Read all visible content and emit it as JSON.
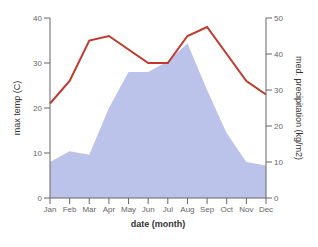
{
  "chart_data": {
    "type": "line",
    "categories": [
      "Jan",
      "Feb",
      "Mar",
      "Apr",
      "May",
      "Jun",
      "Jul",
      "Aug",
      "Sep",
      "Oct",
      "Nov",
      "Dec"
    ],
    "xlabel": "date (month)",
    "ylabel": "max temp (C)",
    "y2label": "med. precipitation (kg/m2)",
    "ylim": [
      0,
      40
    ],
    "yticks": [
      0,
      10,
      20,
      30,
      40
    ],
    "y2lim": [
      0,
      50
    ],
    "y2ticks": [
      0,
      10,
      20,
      30,
      40,
      50
    ],
    "series": [
      {
        "type": "area",
        "axis": "y2",
        "color": "#b0b8e8",
        "values": [
          10,
          13,
          12,
          25,
          35,
          35,
          38,
          43,
          30,
          18,
          10,
          9
        ]
      },
      {
        "type": "line",
        "color": "#c0392b",
        "values": [
          21,
          26,
          35,
          36,
          33,
          30,
          30,
          36,
          38,
          32,
          26,
          23
        ]
      }
    ]
  }
}
